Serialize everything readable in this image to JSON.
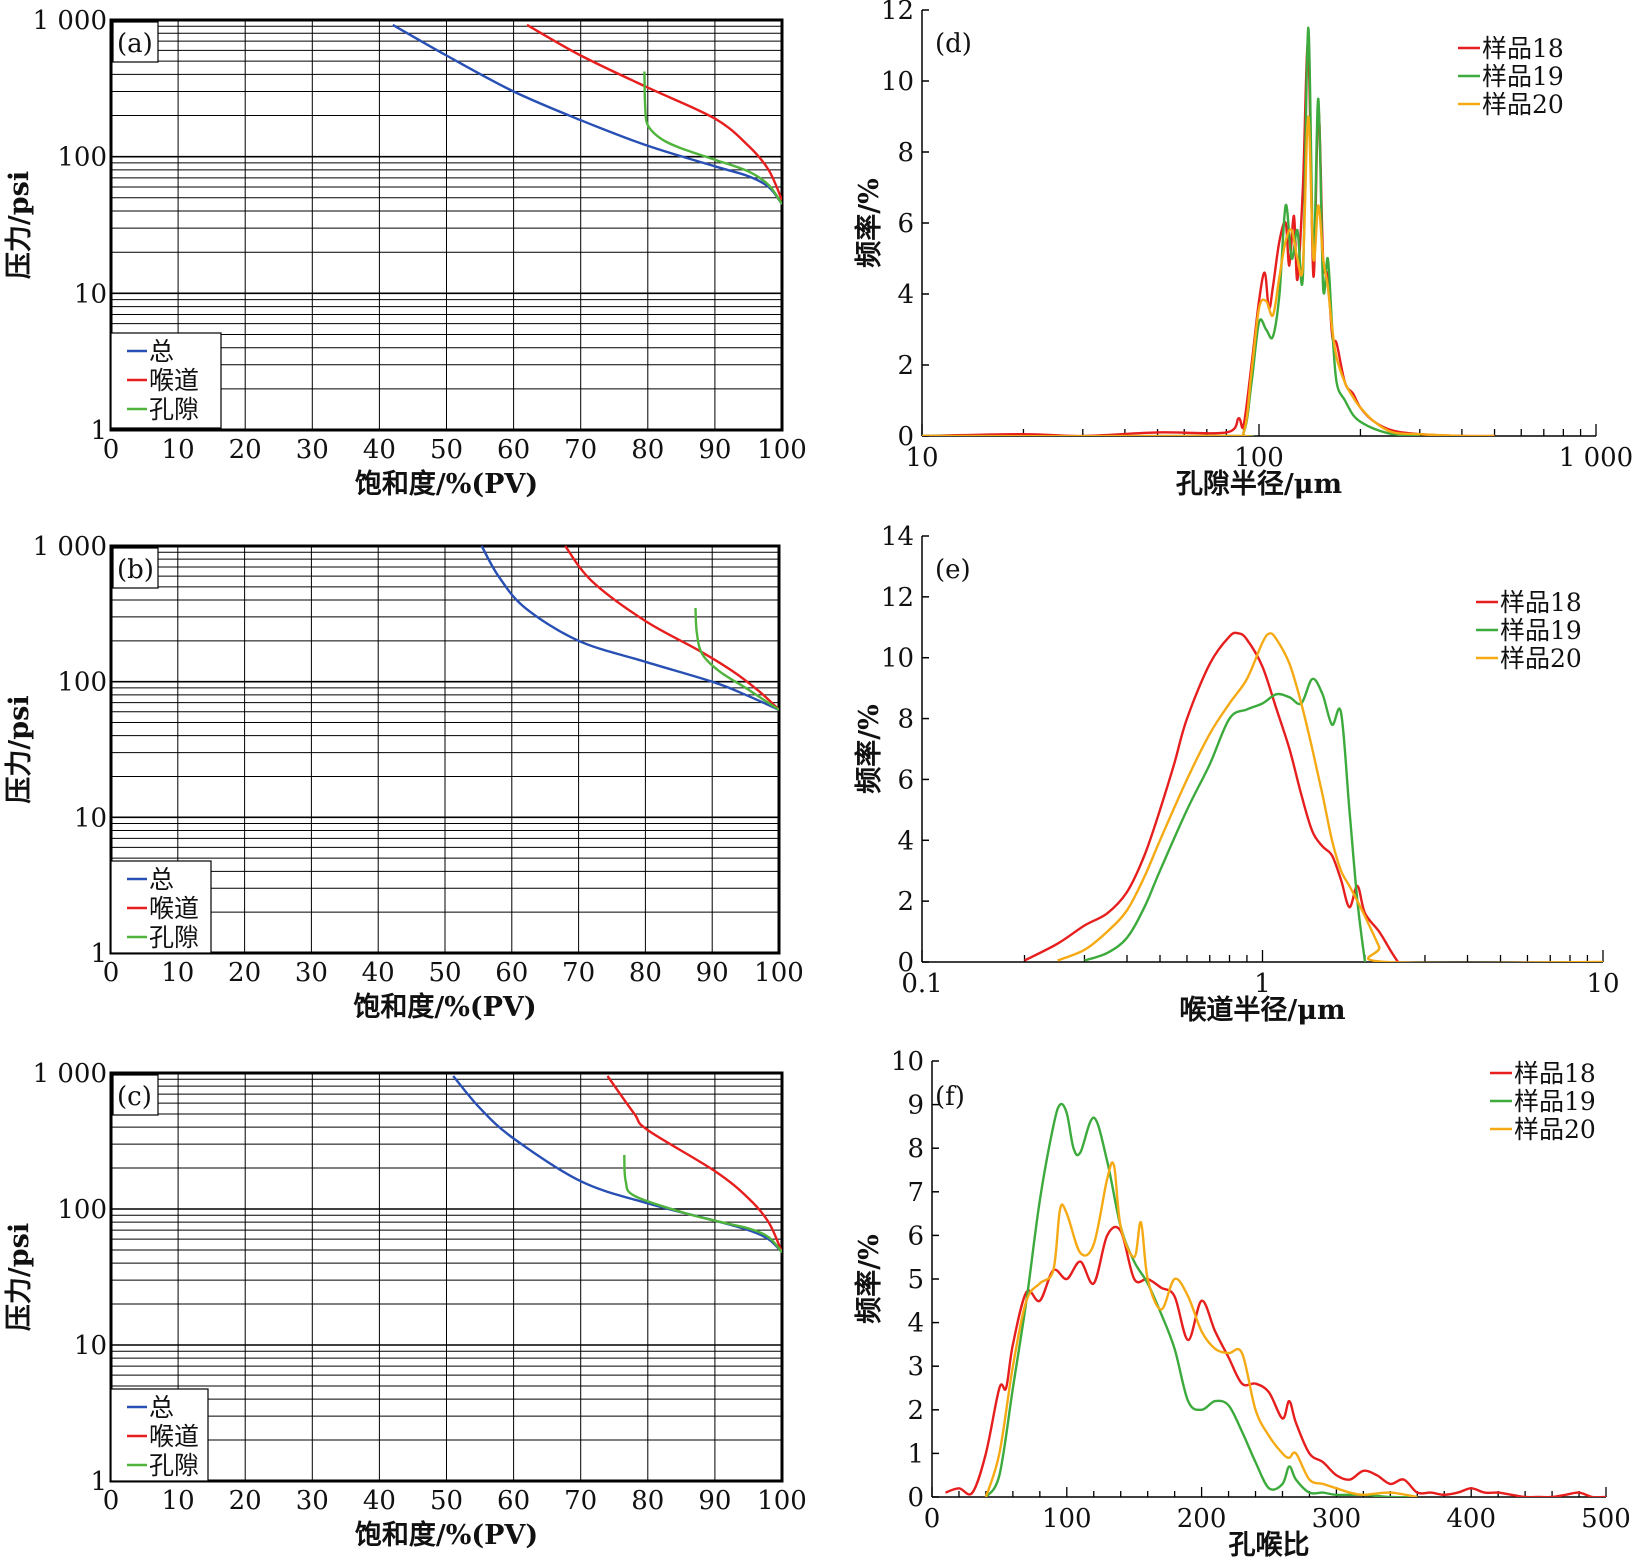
{
  "figure": {
    "colors": {
      "total": "#2850b4",
      "throat": "#e61e1e",
      "pore": "#50b43c",
      "s18": "#e61e1e",
      "s19": "#3caa3c",
      "s20": "#f5aa14"
    }
  },
  "chart_data": [
    {
      "id": "a",
      "type": "line",
      "panel_label": "(a)",
      "xlabel": "饱和度/%(PV)",
      "ylabel": "压力/psi",
      "xlim": [
        0,
        100
      ],
      "ylim": [
        1,
        1000
      ],
      "yscale": "log",
      "grid": true,
      "legend_position": "bottom-left",
      "x_ticks": [
        "0",
        "10",
        "20",
        "30",
        "40",
        "50",
        "60",
        "70",
        "80",
        "90",
        "100"
      ],
      "y_ticks": [
        "1",
        "10",
        "100",
        "1 000"
      ],
      "series": [
        {
          "name": "总",
          "color": "#2850b4",
          "x": [
            42,
            50,
            60,
            70,
            80,
            90,
            95,
            98,
            100
          ],
          "y": [
            920,
            550,
            300,
            185,
            120,
            85,
            72,
            60,
            45
          ]
        },
        {
          "name": "喉道",
          "color": "#e61e1e",
          "x": [
            62,
            70,
            80,
            90,
            95,
            98,
            100
          ],
          "y": [
            920,
            550,
            320,
            190,
            120,
            80,
            48
          ]
        },
        {
          "name": "孔隙",
          "color": "#50b43c",
          "x": [
            79.5,
            79.6,
            80,
            82,
            85,
            90,
            95,
            98,
            100
          ],
          "y": [
            420,
            240,
            170,
            135,
            115,
            95,
            78,
            62,
            45
          ]
        }
      ]
    },
    {
      "id": "b",
      "type": "line",
      "panel_label": "(b)",
      "xlabel": "饱和度/%(PV)",
      "ylabel": "压力/psi",
      "xlim": [
        0,
        100
      ],
      "ylim": [
        1,
        1000
      ],
      "yscale": "log",
      "grid": true,
      "legend_position": "bottom-left",
      "x_ticks": [
        "0",
        "10",
        "20",
        "30",
        "40",
        "50",
        "60",
        "70",
        "80",
        "90",
        "100"
      ],
      "y_ticks": [
        "1",
        "10",
        "100",
        "1 000"
      ],
      "series": [
        {
          "name": "总",
          "color": "#2850b4",
          "x": [
            55.5,
            58,
            62,
            70,
            80,
            90,
            95,
            100
          ],
          "y": [
            1000,
            600,
            350,
            200,
            140,
            100,
            80,
            62
          ]
        },
        {
          "name": "喉道",
          "color": "#e61e1e",
          "x": [
            68,
            72,
            80,
            88,
            93,
            97,
            100
          ],
          "y": [
            1000,
            550,
            280,
            170,
            120,
            85,
            62
          ]
        },
        {
          "name": "孔隙",
          "color": "#50b43c",
          "x": [
            87.5,
            87.7,
            88.5,
            91,
            95,
            98,
            100
          ],
          "y": [
            350,
            230,
            160,
            120,
            90,
            72,
            62
          ]
        }
      ]
    },
    {
      "id": "c",
      "type": "line",
      "panel_label": "(c)",
      "xlabel": "饱和度/%(PV)",
      "ylabel": "压力/psi",
      "xlim": [
        0,
        100
      ],
      "ylim": [
        1,
        1000
      ],
      "yscale": "log",
      "grid": true,
      "legend_position": "bottom-left",
      "x_ticks": [
        "0",
        "10",
        "20",
        "30",
        "40",
        "50",
        "60",
        "70",
        "80",
        "90",
        "100"
      ],
      "y_ticks": [
        "1",
        "10",
        "100",
        "1 000"
      ],
      "series": [
        {
          "name": "总",
          "color": "#2850b4",
          "x": [
            51,
            55,
            60,
            70,
            80,
            90,
            95,
            98,
            100
          ],
          "y": [
            950,
            550,
            330,
            160,
            110,
            82,
            70,
            60,
            48
          ]
        },
        {
          "name": "喉道",
          "color": "#e61e1e",
          "x": [
            74,
            78,
            80,
            90,
            95,
            98,
            100
          ],
          "y": [
            950,
            500,
            380,
            190,
            120,
            80,
            48
          ]
        },
        {
          "name": "孔隙",
          "color": "#50b43c",
          "x": [
            76.5,
            76.7,
            78,
            85,
            90,
            95,
            98,
            100
          ],
          "y": [
            250,
            160,
            125,
            95,
            82,
            72,
            62,
            48
          ]
        }
      ]
    },
    {
      "id": "d",
      "type": "line",
      "panel_label": "(d)",
      "xlabel": "孔隙半径/μm",
      "ylabel": "频率/%",
      "xlim": [
        10,
        1000
      ],
      "xscale": "log",
      "ylim": [
        0,
        12
      ],
      "grid": false,
      "legend_position": "top-right",
      "x_ticks": [
        "10",
        "100",
        "1 000"
      ],
      "y_ticks": [
        "0",
        "2",
        "4",
        "6",
        "8",
        "10",
        "12"
      ],
      "series": [
        {
          "name": "样品18",
          "color": "#e61e1e",
          "x": [
            10,
            20,
            30,
            50,
            80,
            87,
            90,
            95,
            100,
            104,
            107,
            110,
            115,
            120,
            123,
            127,
            130,
            135,
            140,
            145,
            150,
            155,
            160,
            165,
            170,
            180,
            190,
            200,
            220,
            250,
            300,
            400,
            500
          ],
          "y": [
            0,
            0.05,
            0,
            0.1,
            0.1,
            0.5,
            0.3,
            2.0,
            3.8,
            4.6,
            3.6,
            4.2,
            5.5,
            6.0,
            4.8,
            6.2,
            4.4,
            7.0,
            11.0,
            4.5,
            9.2,
            5.0,
            4.5,
            2.8,
            2.6,
            1.5,
            1.2,
            0.8,
            0.4,
            0.15,
            0.05,
            0,
            0
          ]
        },
        {
          "name": "样品19",
          "color": "#3caa3c",
          "x": [
            10,
            80,
            90,
            95,
            100,
            105,
            110,
            115,
            120,
            125,
            130,
            135,
            140,
            145,
            150,
            155,
            160,
            165,
            170,
            180,
            190,
            200,
            220,
            250,
            300
          ],
          "y": [
            0,
            0,
            0.1,
            1.5,
            3.2,
            3.0,
            2.8,
            4.0,
            6.5,
            5.0,
            5.8,
            4.5,
            11.5,
            5.0,
            9.5,
            4.2,
            5.0,
            3.0,
            1.5,
            1.0,
            0.6,
            0.4,
            0.2,
            0.05,
            0
          ]
        },
        {
          "name": "样品20",
          "color": "#f5aa14",
          "x": [
            10,
            80,
            90,
            95,
            100,
            105,
            110,
            115,
            120,
            125,
            130,
            135,
            140,
            145,
            150,
            155,
            160,
            165,
            170,
            180,
            190,
            200,
            220,
            250,
            300,
            400,
            500
          ],
          "y": [
            0,
            0,
            0.1,
            1.8,
            3.6,
            3.8,
            3.4,
            4.5,
            5.5,
            5.8,
            5.0,
            4.8,
            9.0,
            5.0,
            6.5,
            5.0,
            4.2,
            3.0,
            2.2,
            1.5,
            1.1,
            0.8,
            0.4,
            0.1,
            0.05,
            0,
            0
          ]
        }
      ]
    },
    {
      "id": "e",
      "type": "line",
      "panel_label": "(e)",
      "xlabel": "喉道半径/μm",
      "ylabel": "频率/%",
      "xlim": [
        0.1,
        10
      ],
      "xscale": "log",
      "ylim": [
        0,
        14
      ],
      "grid": false,
      "legend_position": "top-right",
      "x_ticks": [
        "0.1",
        "1",
        "10"
      ],
      "y_ticks": [
        "0",
        "2",
        "4",
        "6",
        "8",
        "10",
        "12",
        "14"
      ],
      "series": [
        {
          "name": "样品18",
          "color": "#e61e1e",
          "x": [
            0.2,
            0.25,
            0.3,
            0.35,
            0.4,
            0.45,
            0.5,
            0.55,
            0.6,
            0.7,
            0.8,
            0.85,
            0.9,
            1.0,
            1.1,
            1.2,
            1.3,
            1.4,
            1.5,
            1.6,
            1.7,
            1.8,
            1.9,
            2.0,
            2.2,
            2.4,
            2.5
          ],
          "y": [
            0.05,
            0.6,
            1.2,
            1.6,
            2.3,
            3.5,
            5.0,
            6.5,
            8.0,
            9.8,
            10.7,
            10.8,
            10.6,
            9.7,
            8.3,
            7.0,
            5.5,
            4.3,
            3.8,
            3.5,
            2.7,
            1.8,
            2.5,
            1.6,
            1.0,
            0.3,
            0
          ]
        },
        {
          "name": "样品19",
          "color": "#3caa3c",
          "x": [
            0.3,
            0.35,
            0.4,
            0.45,
            0.5,
            0.6,
            0.7,
            0.8,
            0.9,
            1.0,
            1.1,
            1.2,
            1.3,
            1.4,
            1.5,
            1.6,
            1.7,
            1.8,
            1.9,
            2.0
          ],
          "y": [
            0.05,
            0.3,
            0.8,
            1.8,
            3.0,
            5.0,
            6.5,
            8.0,
            8.3,
            8.5,
            8.8,
            8.7,
            8.5,
            9.3,
            8.8,
            7.8,
            8.2,
            5.0,
            2.0,
            0
          ]
        },
        {
          "name": "样品20",
          "color": "#f5aa14",
          "x": [
            0.25,
            0.3,
            0.35,
            0.4,
            0.45,
            0.5,
            0.6,
            0.7,
            0.8,
            0.9,
            1.0,
            1.05,
            1.1,
            1.2,
            1.3,
            1.4,
            1.5,
            1.6,
            1.7,
            1.8,
            1.9,
            2.0,
            2.2,
            2.3,
            10
          ],
          "y": [
            0.05,
            0.4,
            1.0,
            1.7,
            2.8,
            4.0,
            6.0,
            7.5,
            8.5,
            9.3,
            10.5,
            10.8,
            10.6,
            9.8,
            8.5,
            7.0,
            5.5,
            4.0,
            3.0,
            2.5,
            2.0,
            1.5,
            0.5,
            0,
            0
          ]
        }
      ]
    },
    {
      "id": "f",
      "type": "line",
      "panel_label": "(f)",
      "xlabel": "孔喉比",
      "ylabel": "频率/%",
      "xlim": [
        0,
        500
      ],
      "ylim": [
        0,
        10
      ],
      "grid": false,
      "legend_position": "top-right",
      "x_ticks": [
        "0",
        "100",
        "200",
        "300",
        "400",
        "500"
      ],
      "y_ticks": [
        "0",
        "1",
        "2",
        "3",
        "4",
        "5",
        "6",
        "7",
        "8",
        "9",
        "10"
      ],
      "series": [
        {
          "name": "样品18",
          "color": "#e61e1e",
          "x": [
            10,
            20,
            30,
            40,
            50,
            55,
            60,
            70,
            80,
            90,
            100,
            110,
            120,
            130,
            140,
            150,
            160,
            170,
            180,
            190,
            200,
            210,
            220,
            230,
            240,
            250,
            260,
            265,
            270,
            280,
            290,
            300,
            310,
            320,
            330,
            340,
            350,
            360,
            370,
            380,
            390,
            400,
            410,
            420,
            430,
            440,
            450,
            460,
            470,
            480,
            490,
            500
          ],
          "y": [
            0.1,
            0.2,
            0.1,
            1.0,
            2.5,
            2.5,
            3.5,
            4.7,
            4.5,
            5.2,
            5.0,
            5.4,
            4.9,
            6.0,
            6.1,
            5.0,
            5.0,
            4.8,
            4.6,
            3.6,
            4.5,
            3.8,
            3.2,
            2.6,
            2.6,
            2.4,
            1.8,
            2.2,
            1.7,
            1.0,
            0.8,
            0.5,
            0.4,
            0.6,
            0.5,
            0.3,
            0.4,
            0.1,
            0.1,
            0.05,
            0.1,
            0.2,
            0.1,
            0.1,
            0.05,
            0,
            0,
            0,
            0.05,
            0.1,
            0,
            0
          ]
        },
        {
          "name": "样品19",
          "color": "#3caa3c",
          "x": [
            40,
            50,
            60,
            70,
            80,
            90,
            95,
            100,
            105,
            110,
            120,
            130,
            140,
            150,
            160,
            170,
            180,
            190,
            200,
            210,
            220,
            230,
            240,
            250,
            260,
            265,
            270,
            280,
            290,
            300,
            320,
            340,
            360
          ],
          "y": [
            0,
            0.5,
            2.5,
            4.5,
            6.8,
            8.5,
            9.0,
            8.8,
            8.0,
            7.9,
            8.7,
            7.7,
            6.2,
            5.4,
            4.9,
            4.2,
            3.4,
            2.2,
            2.0,
            2.2,
            2.1,
            1.5,
            0.8,
            0.2,
            0.3,
            0.7,
            0.4,
            0.1,
            0.1,
            0.05,
            0.05,
            0,
            0
          ]
        },
        {
          "name": "样品20",
          "color": "#f5aa14",
          "x": [
            40,
            50,
            60,
            70,
            80,
            90,
            95,
            100,
            110,
            120,
            130,
            135,
            140,
            150,
            155,
            160,
            170,
            180,
            190,
            200,
            210,
            220,
            230,
            240,
            250,
            260,
            265,
            270,
            280,
            290,
            300,
            310,
            320,
            340,
            360
          ],
          "y": [
            0,
            1.0,
            3.0,
            4.5,
            4.9,
            5.2,
            6.6,
            6.5,
            5.6,
            5.8,
            7.3,
            7.6,
            6.2,
            5.5,
            6.3,
            5.0,
            4.3,
            5.0,
            4.6,
            3.8,
            3.4,
            3.3,
            3.3,
            2.0,
            1.4,
            1.0,
            0.9,
            1.0,
            0.4,
            0.3,
            0.2,
            0.1,
            0.05,
            0.1,
            0
          ]
        }
      ]
    }
  ]
}
